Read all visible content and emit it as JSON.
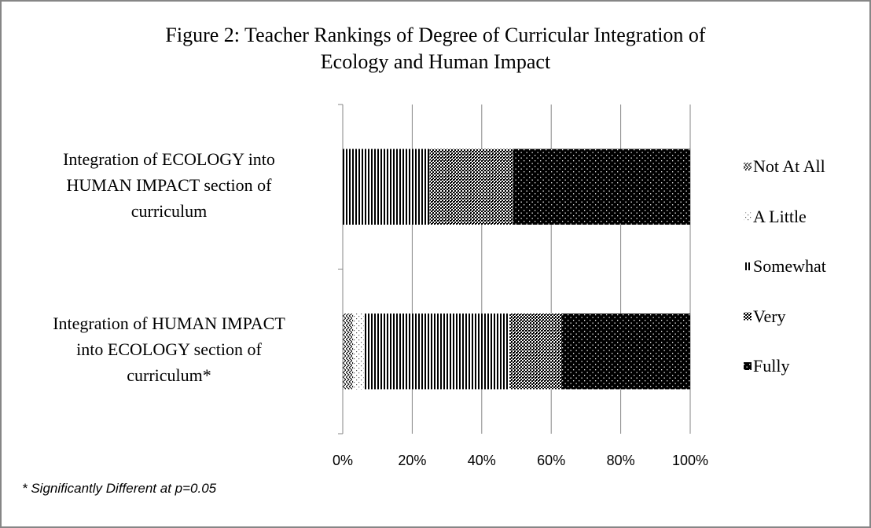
{
  "chart_data": {
    "type": "stacked_bar_horizontal",
    "title": "Figure 2: Teacher Rankings of Degree of  Curricular Integration of\nEcology and Human Impact",
    "categories": [
      "Integration of ECOLOGY into\nHUMAN IMPACT section of\ncurriculum",
      "Integration of HUMAN IMPACT\ninto ECOLOGY section of\ncurriculum*"
    ],
    "series": [
      {
        "name": "Not At All",
        "color": "#000000",
        "values": [
          0,
          3
        ]
      },
      {
        "name": "A Little",
        "color": "#000000",
        "values": [
          0,
          3
        ]
      },
      {
        "name": "Somewhat",
        "color": "#000000",
        "values": [
          25,
          42
        ]
      },
      {
        "name": "Very",
        "color": "#000000",
        "values": [
          24,
          15
        ]
      },
      {
        "name": "Fully",
        "color": "#000000",
        "values": [
          51,
          37
        ]
      }
    ],
    "xlim": [
      0,
      100
    ],
    "xticks": [
      {
        "value": 0,
        "label": "0%"
      },
      {
        "value": 20,
        "label": "20%"
      },
      {
        "value": 40,
        "label": "40%"
      },
      {
        "value": 60,
        "label": "60%"
      },
      {
        "value": 80,
        "label": "80%"
      },
      {
        "value": 100,
        "label": "100%"
      }
    ],
    "grid": true,
    "legend": "right",
    "footnote": "* Significantly Different at p=0.05"
  }
}
